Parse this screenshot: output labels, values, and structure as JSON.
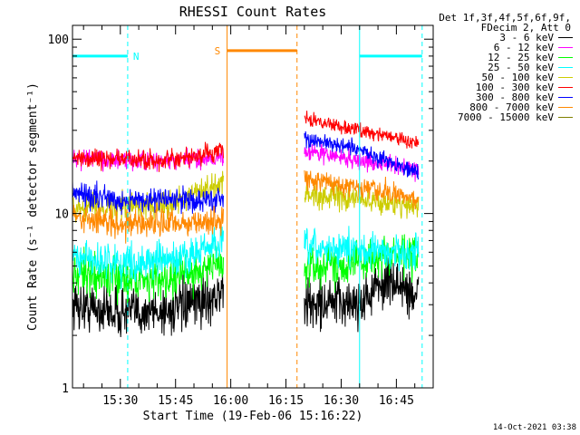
{
  "chart_data": {
    "type": "line",
    "title": "RHESSI Count Rates",
    "xlabel": "Start Time (19-Feb-06 15:16:22)",
    "ylabel": "Count Rate (s⁻¹ detector segment⁻¹)",
    "yscale": "log",
    "ylim": [
      1,
      120
    ],
    "xlim": [
      "15:17",
      "16:55"
    ],
    "y_ticklabels": [
      "1",
      "10",
      "100"
    ],
    "x_ticklabels": [
      "15:30",
      "15:45",
      "16:00",
      "16:15",
      "16:30",
      "16:45"
    ],
    "legend_header": [
      "Det 1f,3f,4f,5f,6f,9f,",
      "FDecim 2, Att 0"
    ],
    "series": [
      {
        "name": "3 - 6 keV",
        "color": "#000000",
        "segments": [
          {
            "x": [
              "15:17",
              "15:30",
              "15:45",
              "15:58"
            ],
            "y": [
              3.0,
              2.7,
              2.8,
              3.5
            ]
          },
          {
            "x": [
              "16:20",
              "16:35",
              "16:43",
              "16:51"
            ],
            "y": [
              3.0,
              3.1,
              4.2,
              3.3
            ]
          }
        ]
      },
      {
        "name": "6 - 12 keV",
        "color": "#ff00ff",
        "segments": [
          {
            "x": [
              "15:17",
              "15:30",
              "15:45",
              "15:58"
            ],
            "y": [
              21,
              20,
              20,
              21
            ]
          },
          {
            "x": [
              "16:20",
              "16:35",
              "16:43",
              "16:51"
            ],
            "y": [
              23,
              20,
              19,
              18
            ]
          }
        ]
      },
      {
        "name": "12 - 25 keV",
        "color": "#00ff00",
        "segments": [
          {
            "x": [
              "15:17",
              "15:30",
              "15:45",
              "15:58"
            ],
            "y": [
              4.5,
              4.2,
              4.3,
              5.2
            ]
          },
          {
            "x": [
              "16:20",
              "16:35",
              "16:43",
              "16:51"
            ],
            "y": [
              4.8,
              5.3,
              5.8,
              5.6
            ]
          }
        ]
      },
      {
        "name": "25 - 50 keV",
        "color": "#00ffff",
        "segments": [
          {
            "x": [
              "15:17",
              "15:30",
              "15:45",
              "15:58"
            ],
            "y": [
              5.6,
              5.2,
              5.4,
              6.8
            ]
          },
          {
            "x": [
              "16:20",
              "16:35",
              "16:43",
              "16:51"
            ],
            "y": [
              6.3,
              6.2,
              6.0,
              5.9
            ]
          }
        ]
      },
      {
        "name": "50 - 100 keV",
        "color": "#cccc00",
        "segments": [
          {
            "x": [
              "15:17",
              "15:30",
              "15:45",
              "15:58"
            ],
            "y": [
              11,
              11,
              11.5,
              15
            ]
          },
          {
            "x": [
              "16:20",
              "16:35",
              "16:43",
              "16:51"
            ],
            "y": [
              13,
              12,
              11.5,
              11
            ]
          }
        ]
      },
      {
        "name": "100 - 300 keV",
        "color": "#ff0000",
        "segments": [
          {
            "x": [
              "15:17",
              "15:30",
              "15:45",
              "15:58"
            ],
            "y": [
              21,
              20.5,
              20,
              23
            ]
          },
          {
            "x": [
              "16:20",
              "16:35",
              "16:43",
              "16:51"
            ],
            "y": [
              35,
              30,
              28,
              25
            ]
          }
        ]
      },
      {
        "name": "300 - 800 keV",
        "color": "#0000ff",
        "segments": [
          {
            "x": [
              "15:17",
              "15:30",
              "15:45",
              "15:58"
            ],
            "y": [
              13,
              12,
              12,
              12
            ]
          },
          {
            "x": [
              "16:20",
              "16:35",
              "16:43",
              "16:51"
            ],
            "y": [
              27,
              23,
              20,
              17
            ]
          }
        ]
      },
      {
        "name": "800 - 7000 keV",
        "color": "#ff8800",
        "segments": [
          {
            "x": [
              "15:17",
              "15:30",
              "15:45",
              "15:58"
            ],
            "y": [
              9.5,
              8.8,
              8.8,
              9.0
            ]
          },
          {
            "x": [
              "16:20",
              "16:35",
              "16:43",
              "16:51"
            ],
            "y": [
              16,
              14,
              13,
              12
            ]
          }
        ]
      },
      {
        "name": "7000 - 15000 keV",
        "color": "#808000",
        "segments": []
      }
    ],
    "annotations": [
      {
        "label": "N",
        "color": "#00ffff",
        "y": 80,
        "x_start": "15:17",
        "x_end": "15:32",
        "x_dashed": "15:32",
        "x_solid": "15:17"
      },
      {
        "label": "S",
        "color": "#ff8800",
        "y": 86,
        "x_start": "15:59",
        "x_end": "16:18",
        "x_solid": "15:59",
        "x_dashed": "16:18"
      },
      {
        "label": "",
        "color": "#00ffff",
        "y": 80,
        "x_start": "16:35",
        "x_end": "16:52",
        "x_solid": "16:35",
        "x_dashed": "16:52"
      }
    ],
    "timestamp": "14-Oct-2021 03:38",
    "legend_position": "right, outside plot"
  }
}
